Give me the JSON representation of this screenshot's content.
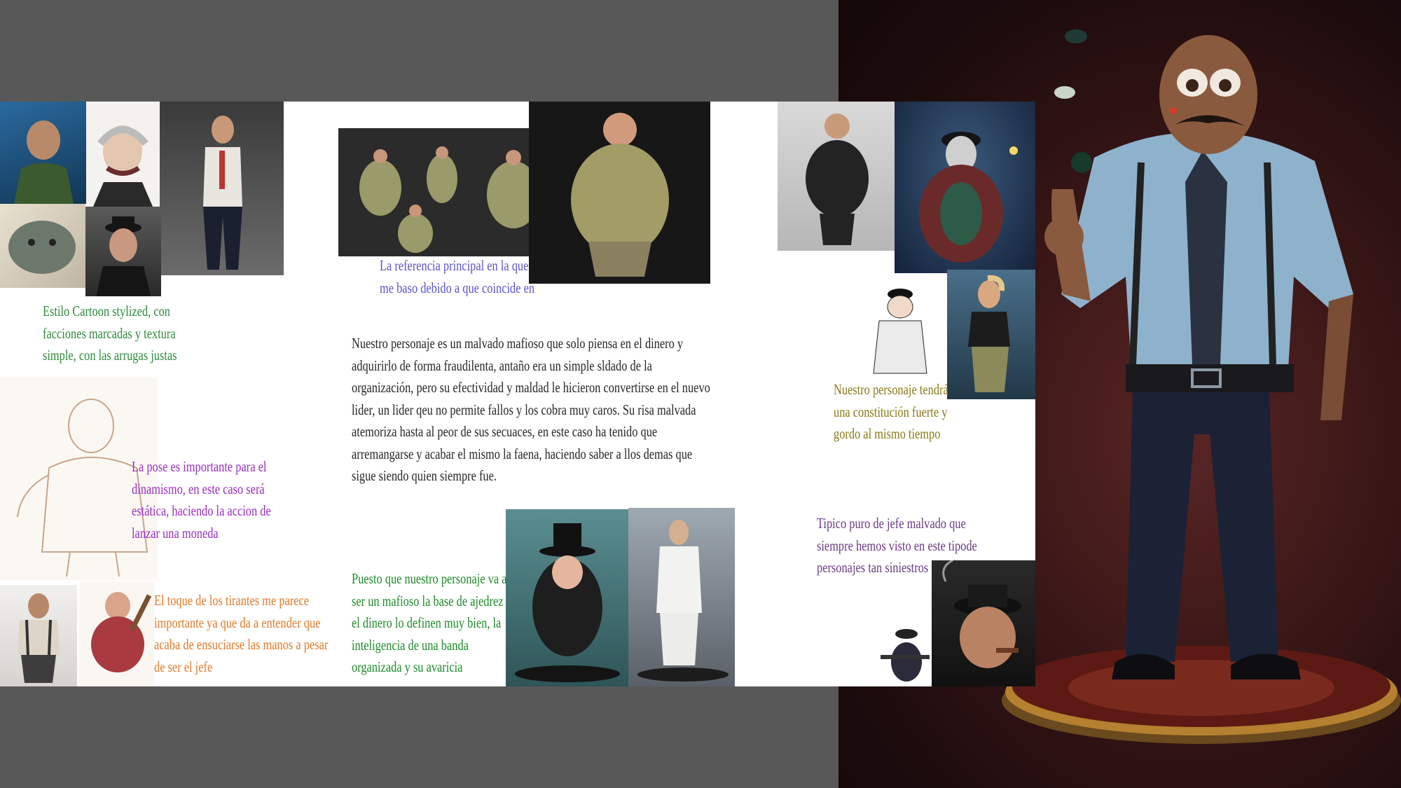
{
  "notes": {
    "cartoon_style": [
      "Estilo Cartoon stylized, con",
      "facciones marcadas y textura",
      "simple, con las arrugas justas"
    ],
    "main_reference": [
      "La referencia principal en la que",
      "me baso debido a que coincide en"
    ],
    "description": [
      "Nuestro personaje es un malvado mafioso que solo piensa en el dinero y",
      "adquirirlo de forma fraudilenta, antaño era un simple sldado de la",
      "organización, pero su efectividad y maldad le hicieron convertirse en el nuevo",
      "lider, un lider qeu no permite fallos y los cobra muy caros. Su risa malvada",
      "atemoriza hasta al peor de sus secuaces, en este caso ha tenido que",
      "arremangarse y acabar el mismo la faena, haciendo saber a llos demas que",
      "sigue siendo quien siempre fue."
    ],
    "pose": [
      "La pose es importante para el",
      "dinamismo, en este caso será",
      "estática, haciendo la accion de",
      "lanzar una moneda"
    ],
    "suspenders": [
      "El toque de los tirantes me parece",
      "importante ya que da a entender que",
      "acaba de ensuciarse las manos a pesar",
      "de ser el jefe"
    ],
    "chess": [
      "Puesto que nuestro personaje va a",
      "ser un mafioso la base de ajedrez y",
      "el dinero lo definen muy bien, la",
      "inteligencia de una banda",
      "organizada y su avaricia"
    ],
    "constitution": [
      "Nuestro personaje tendrá",
      "una constitución fuerte y",
      "gordo al mismo tiempo"
    ],
    "cigar": [
      "Tipico puro de jefe malvado que",
      "siempre hemos visto en este tipode",
      "personajes tan siniestros"
    ]
  },
  "colors": {
    "cartoon_style": "#2e8a3c",
    "main_reference": "#5b55c8",
    "description": "#262626",
    "pose": "#9a2ec0",
    "suspenders": "#e07b2a",
    "chess": "#1f8a2a",
    "constitution": "#8a7a18",
    "cigar": "#6b3b85",
    "outer_background": "#585858",
    "board": "#ffffff"
  },
  "images": [
    "green-soldier-character",
    "monocle-old-man-character",
    "brute-character-bust",
    "hat-mobster-bust",
    "waiter-character-render",
    "fat-mobster-turnaround",
    "fat-mobster-main-reference",
    "pencil-sketch-fat-boss",
    "suspenders-thug-character",
    "fat-bat-character",
    "penguin-villain-figure",
    "two-face-figure",
    "suit-fat-man-render",
    "bearded-coat-character",
    "white-suit-boss-drawing",
    "blonde-tough-guy-render",
    "tommy-gun-gangster",
    "cigar-smoking-mobster",
    "final-mafia-boss-render"
  ]
}
